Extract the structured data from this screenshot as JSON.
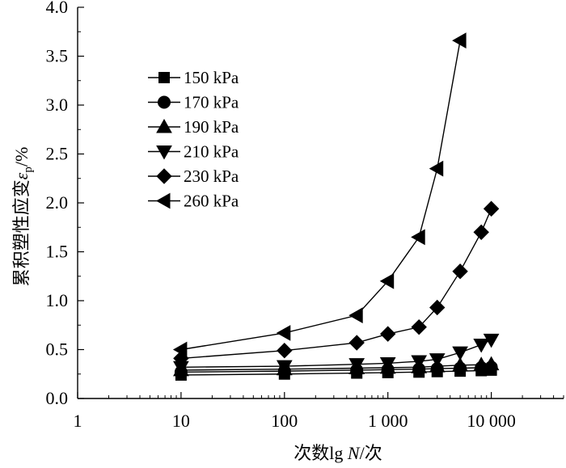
{
  "chart_data": {
    "type": "line",
    "title": "",
    "xlabel": "次数lg N/次",
    "xlabel_parts": {
      "prefix": "次数lg ",
      "italic": "N",
      "suffix": "/次"
    },
    "ylabel": "累积塑性应变εp/%",
    "ylabel_parts": {
      "prefix": "累积塑性应变",
      "symbol": "ε",
      "sub": "p",
      "suffix": "/%"
    },
    "xscale": "log",
    "xlim": [
      1,
      50000
    ],
    "ylim": [
      0.0,
      4.0
    ],
    "x_ticks": [
      1,
      10,
      100,
      1000,
      10000
    ],
    "x_tick_labels": [
      "1",
      "10",
      "100",
      "1 000",
      "10 000"
    ],
    "y_ticks": [
      0.0,
      0.5,
      1.0,
      1.5,
      2.0,
      2.5,
      3.0,
      3.5,
      4.0
    ],
    "y_tick_labels": [
      "0.0",
      "0.5",
      "1.0",
      "1.5",
      "2.0",
      "2.5",
      "3.0",
      "3.5",
      "4.0"
    ],
    "legend_position": "upper-left",
    "series": [
      {
        "name": "150 kPa",
        "marker": "square",
        "x": [
          10,
          100,
          500,
          1000,
          2000,
          3000,
          5000,
          8000,
          10000
        ],
        "y": [
          0.24,
          0.25,
          0.26,
          0.265,
          0.27,
          0.275,
          0.28,
          0.285,
          0.29
        ]
      },
      {
        "name": "170 kPa",
        "marker": "circle",
        "x": [
          10,
          100,
          500,
          1000,
          2000,
          3000,
          5000,
          8000,
          10000
        ],
        "y": [
          0.27,
          0.28,
          0.29,
          0.295,
          0.3,
          0.305,
          0.31,
          0.315,
          0.32
        ]
      },
      {
        "name": "190 kPa",
        "marker": "triangle-up",
        "x": [
          10,
          100,
          500,
          1000,
          2000,
          3000,
          5000,
          8000,
          10000
        ],
        "y": [
          0.29,
          0.3,
          0.31,
          0.315,
          0.32,
          0.33,
          0.34,
          0.345,
          0.35
        ]
      },
      {
        "name": "210 kPa",
        "marker": "triangle-down",
        "x": [
          10,
          100,
          500,
          1000,
          2000,
          3000,
          5000,
          8000,
          10000
        ],
        "y": [
          0.32,
          0.33,
          0.35,
          0.36,
          0.38,
          0.4,
          0.47,
          0.55,
          0.6
        ]
      },
      {
        "name": "230 kPa",
        "marker": "diamond",
        "x": [
          10,
          100,
          500,
          1000,
          2000,
          3000,
          5000,
          8000,
          10000
        ],
        "y": [
          0.41,
          0.49,
          0.57,
          0.66,
          0.73,
          0.93,
          1.3,
          1.7,
          1.94
        ]
      },
      {
        "name": "260 kPa",
        "marker": "triangle-left",
        "x": [
          10,
          100,
          500,
          1000,
          2000,
          3000,
          5000
        ],
        "y": [
          0.5,
          0.67,
          0.85,
          1.2,
          1.65,
          2.35,
          3.66
        ]
      }
    ]
  }
}
